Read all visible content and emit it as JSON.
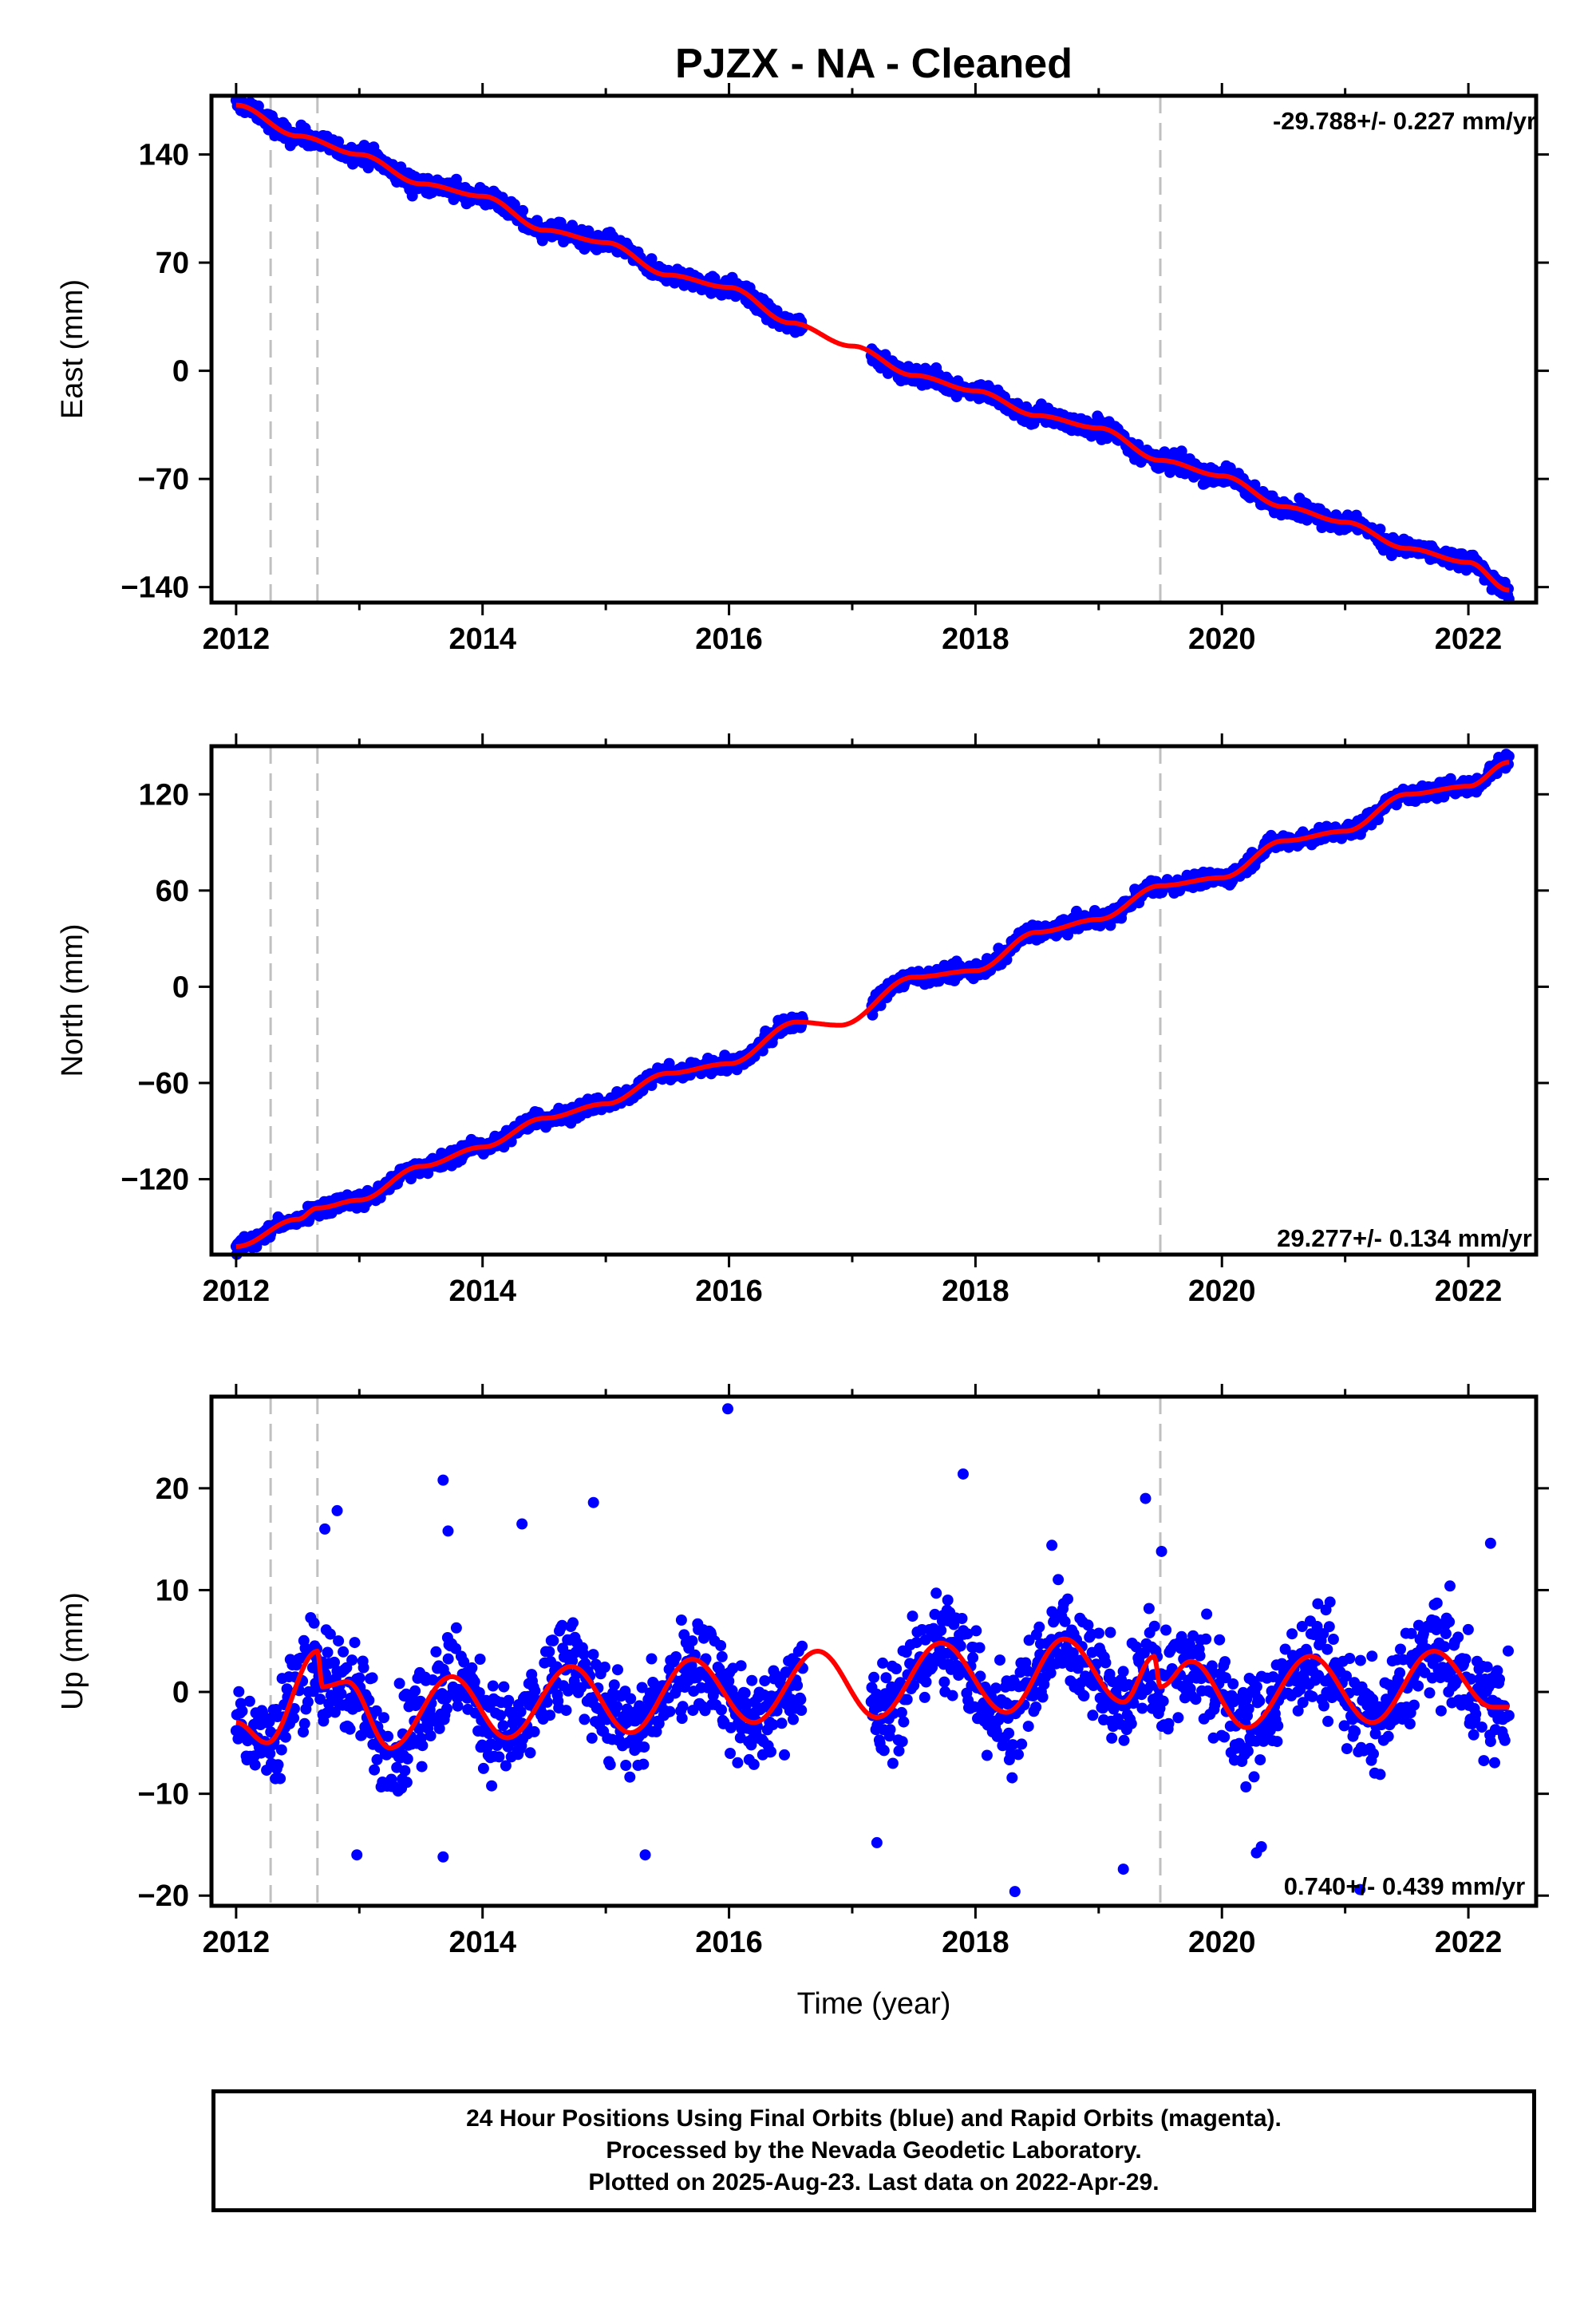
{
  "title": "PJZX  - NA - Cleaned",
  "xlabel": "Time (year)",
  "footer": {
    "line1": "24 Hour Positions Using Final Orbits (blue) and Rapid Orbits (magenta).",
    "line2": "Processed by the Nevada Geodetic Laboratory.",
    "line3": "Plotted on 2025-Aug-23. Last data on 2022-Apr-29."
  },
  "colors": {
    "data": "#0000ff",
    "model": "#ff0000",
    "event_line": "#c0c0c0"
  },
  "chart_data": [
    {
      "type": "scatter",
      "panel": "East",
      "ylabel": "East (mm)",
      "rate_label": "-29.788+/- 0.227 mm/yr",
      "xlim": [
        2011.8,
        2022.55
      ],
      "ylim": [
        -150,
        178
      ],
      "xticks": [
        2012,
        2014,
        2016,
        2018,
        2020,
        2022
      ],
      "yticks": [
        140,
        70,
        0,
        -70,
        -140
      ],
      "ytick_labels": [
        "140",
        "70",
        "0",
        "−70",
        "−140"
      ],
      "event_lines_x": [
        2012.28,
        2012.66,
        2019.5
      ],
      "data_gap": [
        2016.6,
        2017.15
      ],
      "model_x": [
        2012.0,
        2012.5,
        2013.0,
        2013.5,
        2014.0,
        2014.5,
        2015.0,
        2015.5,
        2016.0,
        2016.5,
        2017.0,
        2017.5,
        2018.0,
        2018.5,
        2019.0,
        2019.5,
        2020.0,
        2020.5,
        2021.0,
        2021.5,
        2022.0,
        2022.33
      ],
      "model_y": [
        172,
        152,
        140,
        121,
        113,
        91,
        83,
        62,
        54,
        31,
        16,
        -3,
        -13,
        -29,
        -37,
        -58,
        -68,
        -88,
        -98,
        -115,
        -124,
        -142
      ],
      "scatter_amplitude_mm": 3
    },
    {
      "type": "scatter",
      "panel": "North",
      "ylabel": "North (mm)",
      "rate_label": "29.277+/- 0.134 mm/yr",
      "xlim": [
        2011.8,
        2022.55
      ],
      "ylim": [
        -167,
        150
      ],
      "xticks": [
        2012,
        2014,
        2016,
        2018,
        2020,
        2022
      ],
      "yticks": [
        120,
        60,
        0,
        -60,
        -120
      ],
      "ytick_labels": [
        "120",
        "60",
        "0",
        "−60",
        "−120"
      ],
      "event_lines_x": [
        2012.28,
        2012.66,
        2019.5
      ],
      "data_gap": [
        2016.6,
        2017.15
      ],
      "model_x": [
        2012.0,
        2012.5,
        2012.66,
        2013.0,
        2013.5,
        2014.0,
        2014.5,
        2015.0,
        2015.5,
        2016.0,
        2016.55,
        2016.9,
        2017.5,
        2018.0,
        2018.5,
        2019.0,
        2019.5,
        2020.0,
        2020.5,
        2021.0,
        2021.5,
        2022.0,
        2022.33
      ],
      "model_y": [
        -162,
        -145,
        -138,
        -133,
        -112,
        -100,
        -82,
        -73,
        -54,
        -48,
        -22,
        -24,
        6,
        10,
        34,
        42,
        63,
        68,
        91,
        97,
        120,
        125,
        140
      ],
      "scatter_amplitude_mm": 2.5
    },
    {
      "type": "scatter",
      "panel": "Up",
      "ylabel": "Up (mm)",
      "rate_label": "0.740+/- 0.439 mm/yr",
      "xlim": [
        2011.8,
        2022.55
      ],
      "ylim": [
        -21,
        29
      ],
      "xticks": [
        2012,
        2014,
        2016,
        2018,
        2020,
        2022
      ],
      "yticks": [
        20,
        10,
        0,
        -10,
        -20
      ],
      "ytick_labels": [
        "20",
        "10",
        "0",
        "−10",
        "−20"
      ],
      "event_lines_x": [
        2012.28,
        2012.66,
        2019.5
      ],
      "data_gap": [
        2016.6,
        2017.15
      ],
      "model_x": [
        2012.0,
        2012.25,
        2012.66,
        2012.7,
        2012.9,
        2013.25,
        2013.75,
        2014.2,
        2014.72,
        2015.2,
        2015.7,
        2016.2,
        2016.72,
        2017.2,
        2017.72,
        2018.25,
        2018.72,
        2019.2,
        2019.45,
        2019.5,
        2019.75,
        2020.2,
        2020.72,
        2021.22,
        2021.72,
        2022.2,
        2022.33
      ],
      "model_y": [
        -3,
        -5,
        4,
        0.5,
        1,
        -5.5,
        1.5,
        -4.5,
        2.5,
        -4,
        3.2,
        -3,
        4,
        -2.5,
        4.8,
        -2,
        5.2,
        -1,
        3.5,
        0.5,
        3,
        -3.5,
        3.5,
        -3,
        4,
        -1.5,
        -1.5
      ],
      "scatter_amplitude_mm": 2.5,
      "outliers": [
        {
          "x": 2015.99,
          "y": 27.8
        },
        {
          "x": 2013.68,
          "y": 20.8
        },
        {
          "x": 2017.9,
          "y": 21.4
        },
        {
          "x": 2019.38,
          "y": 19
        },
        {
          "x": 2014.9,
          "y": 18.6
        },
        {
          "x": 2012.82,
          "y": 17.8
        },
        {
          "x": 2014.32,
          "y": 16.5
        },
        {
          "x": 2013.72,
          "y": 15.8
        },
        {
          "x": 2012.72,
          "y": 16
        },
        {
          "x": 2018.62,
          "y": 14.4
        },
        {
          "x": 2022.18,
          "y": 14.6
        },
        {
          "x": 2019.51,
          "y": 13.8
        },
        {
          "x": 2018.32,
          "y": -19.6
        },
        {
          "x": 2021.12,
          "y": -19.4
        },
        {
          "x": 2020.32,
          "y": -15.2
        },
        {
          "x": 2019.2,
          "y": -17.4
        },
        {
          "x": 2013.68,
          "y": -16.2
        },
        {
          "x": 2015.32,
          "y": -16
        },
        {
          "x": 2012.98,
          "y": -16
        },
        {
          "x": 2017.2,
          "y": -14.8
        },
        {
          "x": 2020.28,
          "y": -15.8
        }
      ]
    }
  ]
}
